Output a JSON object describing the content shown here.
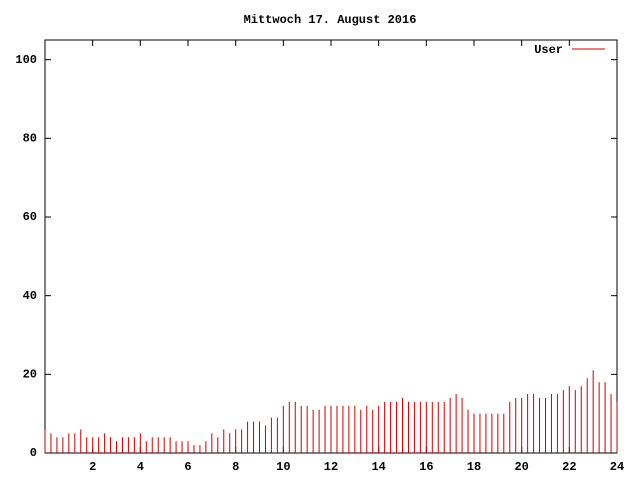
{
  "chart_data": {
    "type": "impulse",
    "title": "Mittwoch 17. August 2016",
    "x": [
      0,
      0.25,
      0.5,
      0.75,
      1,
      1.25,
      1.5,
      1.75,
      2,
      2.25,
      2.5,
      2.75,
      3,
      3.25,
      3.5,
      3.75,
      4,
      4.25,
      4.5,
      4.75,
      5,
      5.25,
      5.5,
      5.75,
      6,
      6.25,
      6.5,
      6.75,
      7,
      7.25,
      7.5,
      7.75,
      8,
      8.25,
      8.5,
      8.75,
      9,
      9.25,
      9.5,
      9.75,
      10,
      10.25,
      10.5,
      10.75,
      11,
      11.25,
      11.5,
      11.75,
      12,
      12.25,
      12.5,
      12.75,
      13,
      13.25,
      13.5,
      13.75,
      14,
      14.25,
      14.5,
      14.75,
      15,
      15.25,
      15.5,
      15.75,
      16,
      16.25,
      16.5,
      16.75,
      17,
      17.25,
      17.5,
      17.75,
      18,
      18.25,
      18.5,
      18.75,
      19,
      19.25,
      19.5,
      19.75,
      20,
      20.25,
      20.5,
      20.75,
      21,
      21.25,
      21.5,
      21.75,
      22,
      22.25,
      22.5,
      22.75,
      23,
      23.25,
      23.5,
      23.75,
      24
    ],
    "series": [
      {
        "name": "User",
        "color": "#cc0000",
        "values": [
          6,
          5,
          4,
          4,
          5,
          5,
          6,
          4,
          4,
          4,
          5,
          4,
          3,
          4,
          4,
          4,
          5,
          3,
          4,
          4,
          4,
          4,
          3,
          3,
          3,
          2,
          2,
          3,
          5,
          4,
          6,
          5,
          6,
          6,
          8,
          8,
          8,
          7,
          9,
          9,
          12,
          13,
          13,
          12,
          12,
          11,
          11,
          12,
          12,
          12,
          12,
          12,
          12,
          11,
          12,
          11,
          12,
          13,
          13,
          13,
          14,
          13,
          13,
          13,
          13,
          13,
          13,
          13,
          14,
          15,
          14,
          11,
          10,
          10,
          10,
          10,
          10,
          10,
          13,
          14,
          14,
          15,
          15,
          14,
          14,
          15,
          15,
          16,
          17,
          16,
          17,
          19,
          21,
          18,
          18,
          15,
          13
        ]
      }
    ],
    "xlim": [
      0,
      24
    ],
    "xticks": [
      2,
      4,
      6,
      8,
      10,
      12,
      14,
      16,
      18,
      20,
      22,
      24
    ],
    "ylim": [
      0,
      105
    ],
    "yticks": [
      0,
      20,
      40,
      60,
      80,
      100
    ]
  }
}
